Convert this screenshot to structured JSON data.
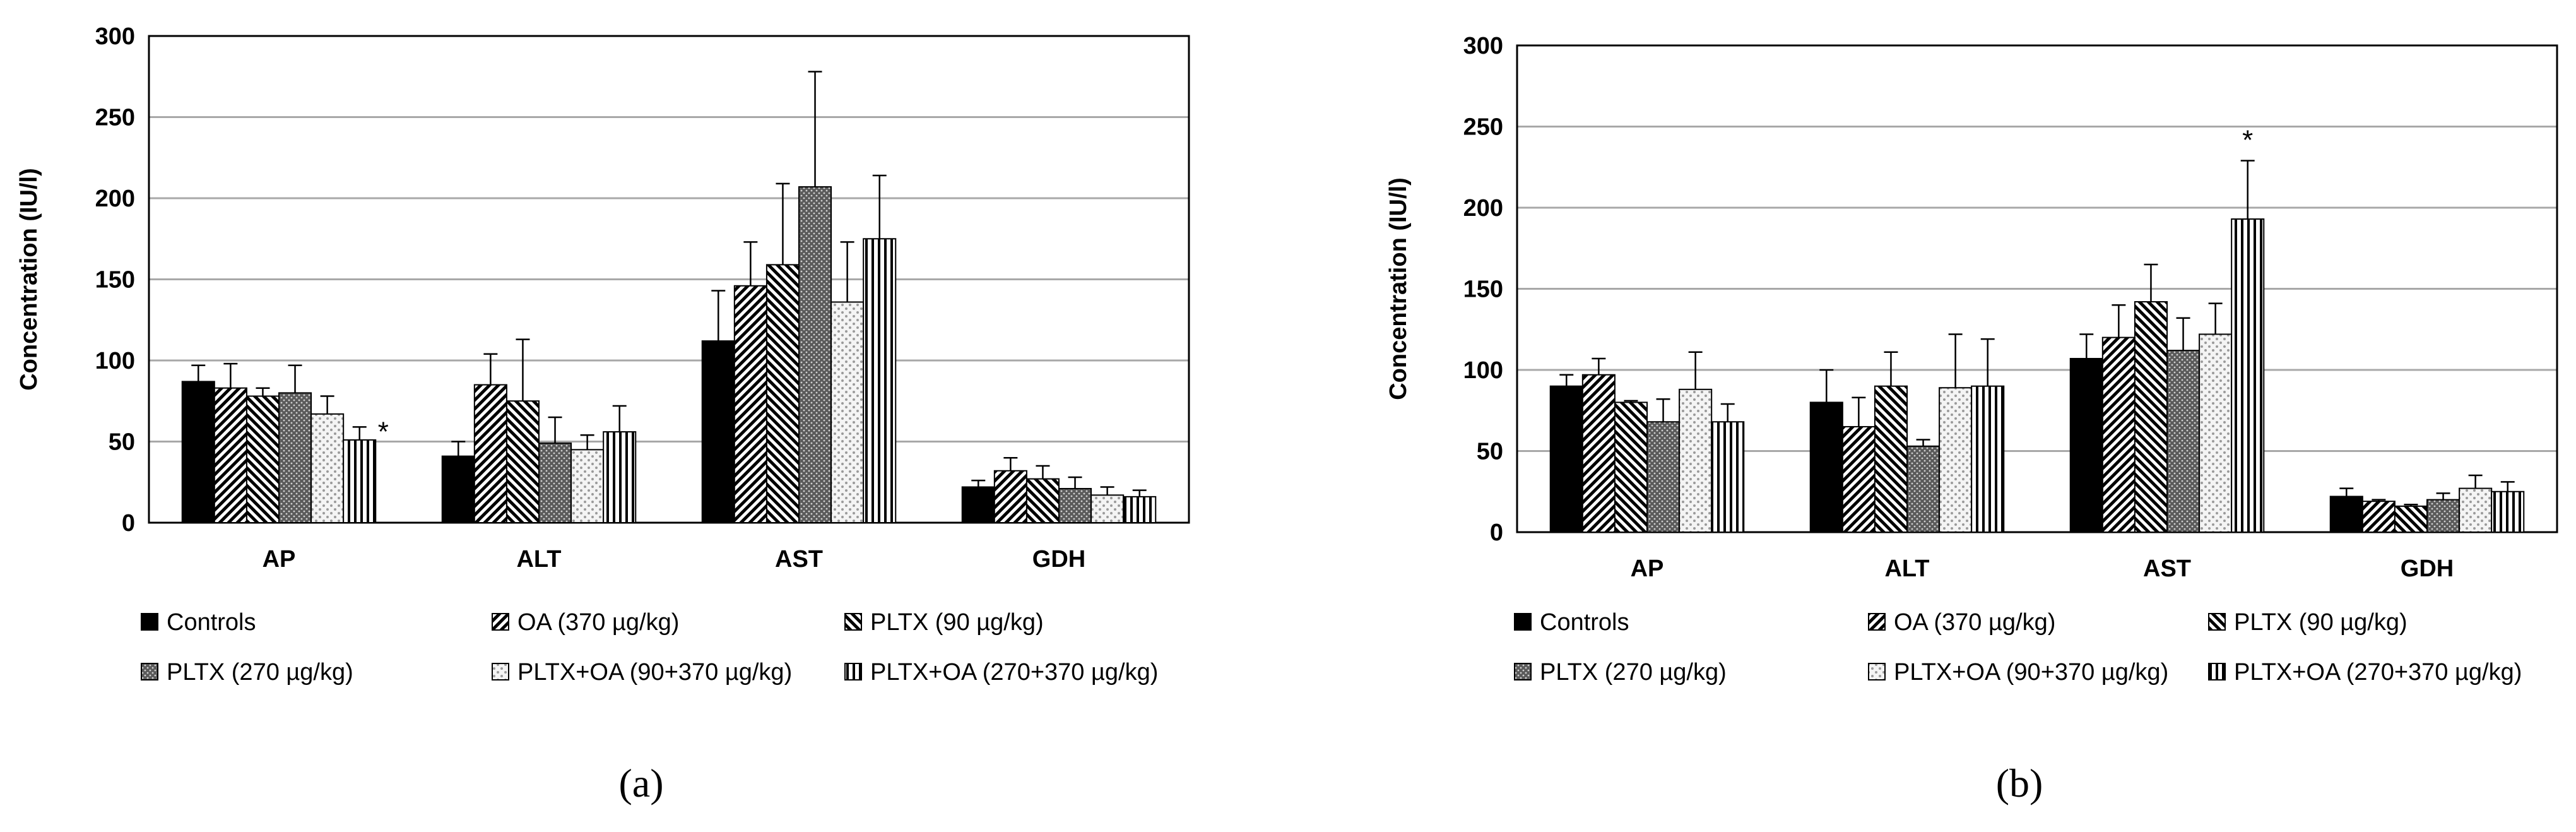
{
  "chart_data": [
    {
      "type": "bar",
      "panel_label": "(a)",
      "ylabel": "Concentration (IU/l)",
      "ylim": [
        0,
        300
      ],
      "yticks": [
        0,
        50,
        100,
        150,
        200,
        250,
        300
      ],
      "grid": true,
      "categories": [
        "AP",
        "ALT",
        "AST",
        "GDH"
      ],
      "series": [
        {
          "name": "Controls",
          "pattern": "solid",
          "values": [
            87,
            41,
            112,
            22
          ],
          "errors": [
            10,
            9,
            31,
            4
          ]
        },
        {
          "name": "OA (370 µg/kg)",
          "pattern": "diag-fwd",
          "values": [
            83,
            85,
            146,
            32
          ],
          "errors": [
            15,
            19,
            27,
            8
          ]
        },
        {
          "name": "PLTX (90 µg/kg)",
          "pattern": "diag-back",
          "values": [
            78,
            75,
            159,
            27
          ],
          "errors": [
            5,
            38,
            50,
            8
          ]
        },
        {
          "name": "PLTX (270 µg/kg)",
          "pattern": "dense-dots",
          "values": [
            80,
            49,
            207,
            21
          ],
          "errors": [
            17,
            16,
            71,
            7
          ]
        },
        {
          "name": "PLTX+OA (90+370 µg/kg)",
          "pattern": "light-dots",
          "values": [
            67,
            45,
            136,
            17
          ],
          "errors": [
            11,
            9,
            37,
            5
          ]
        },
        {
          "name": "PLTX+OA (270+370 µg/kg)",
          "pattern": "vertical",
          "values": [
            51,
            56,
            175,
            16
          ],
          "errors": [
            8,
            16,
            39,
            4
          ]
        }
      ],
      "annotations": [
        {
          "text": "*",
          "category": "AP",
          "series": "PLTX+OA (270+370 µg/kg)"
        }
      ]
    },
    {
      "type": "bar",
      "panel_label": "(b)",
      "ylabel": "Concentration (IU/l)",
      "ylim": [
        0,
        300
      ],
      "yticks": [
        0,
        50,
        100,
        150,
        200,
        250,
        300
      ],
      "grid": true,
      "categories": [
        "AP",
        "ALT",
        "AST",
        "GDH"
      ],
      "series": [
        {
          "name": "Controls",
          "pattern": "solid",
          "values": [
            90,
            80,
            107,
            22
          ],
          "errors": [
            7,
            20,
            15,
            5
          ]
        },
        {
          "name": "OA (370 µg/kg)",
          "pattern": "diag-fwd",
          "values": [
            97,
            65,
            120,
            19
          ],
          "errors": [
            10,
            18,
            20,
            1
          ]
        },
        {
          "name": "PLTX (90 µg/kg)",
          "pattern": "diag-back",
          "values": [
            80,
            90,
            142,
            16
          ],
          "errors": [
            1,
            21,
            23,
            1
          ]
        },
        {
          "name": "PLTX (270 µg/kg)",
          "pattern": "dense-dots",
          "values": [
            68,
            53,
            112,
            20
          ],
          "errors": [
            14,
            4,
            20,
            4
          ]
        },
        {
          "name": "PLTX+OA (90+370 µg/kg)",
          "pattern": "light-dots",
          "values": [
            88,
            89,
            122,
            27
          ],
          "errors": [
            23,
            33,
            19,
            8
          ]
        },
        {
          "name": "PLTX+OA (270+370 µg/kg)",
          "pattern": "vertical",
          "values": [
            68,
            90,
            193,
            25
          ],
          "errors": [
            11,
            29,
            36,
            6
          ]
        }
      ],
      "annotations": [
        {
          "text": "*",
          "category": "AST",
          "series": "PLTX+OA (270+370 µg/kg)"
        }
      ]
    }
  ]
}
